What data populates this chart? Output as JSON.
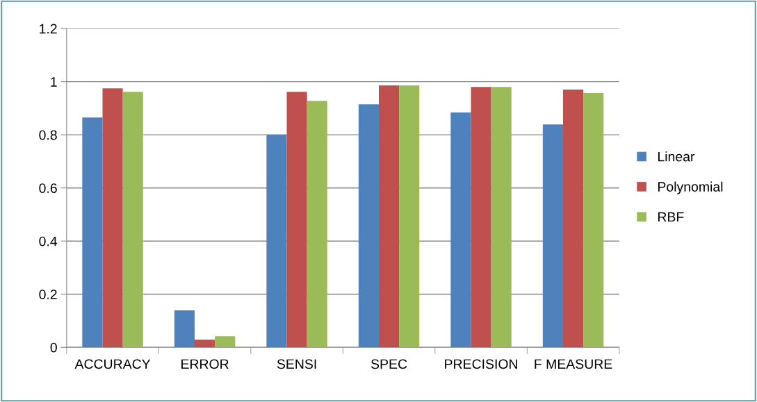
{
  "chart_data": {
    "type": "bar",
    "categories": [
      "ACCURACY",
      "ERROR",
      "SENSI",
      "SPEC",
      "PRECISION",
      "F MEASURE"
    ],
    "series": [
      {
        "name": "Linear",
        "color": "#4f81bd",
        "values": [
          0.865,
          0.139,
          0.8,
          0.915,
          0.884,
          0.839
        ]
      },
      {
        "name": "Polynomial",
        "color": "#c0504d",
        "values": [
          0.975,
          0.029,
          0.962,
          0.986,
          0.98,
          0.97
        ]
      },
      {
        "name": "RBF",
        "color": "#9bbb59",
        "values": [
          0.962,
          0.042,
          0.928,
          0.986,
          0.98,
          0.957
        ]
      }
    ],
    "ylim": [
      0,
      1.2
    ],
    "yticks": [
      0,
      0.2,
      0.4,
      0.6,
      0.8,
      1,
      1.2
    ],
    "grid": "y",
    "legend": "right"
  }
}
